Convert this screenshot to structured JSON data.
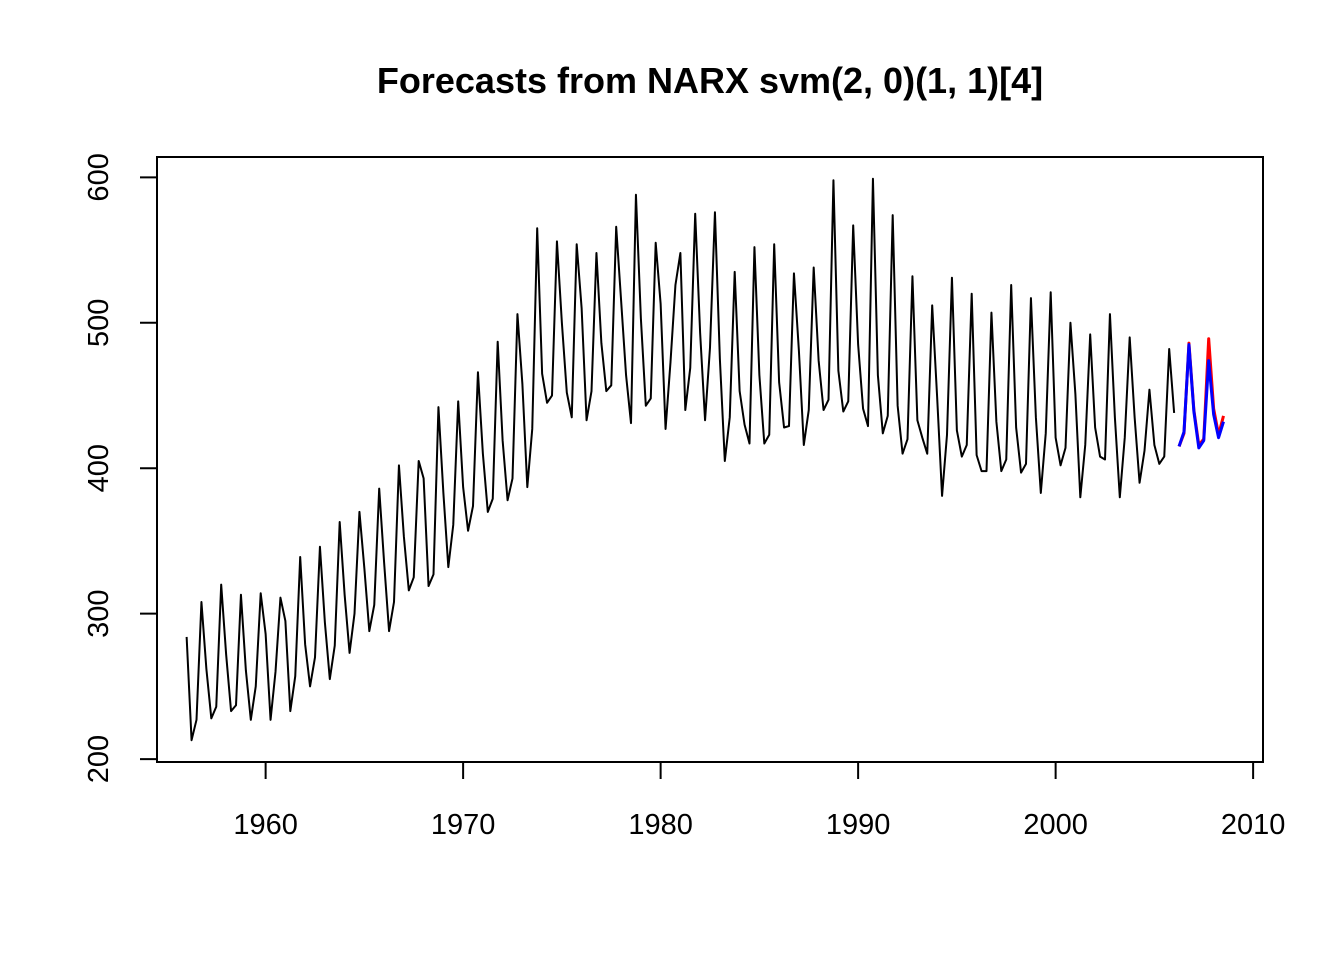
{
  "chart_data": {
    "type": "line",
    "title": "Forecasts from NARX svm(2, 0)(1, 1)[4]",
    "xlabel": "",
    "ylabel": "",
    "xlim": [
      1954.5,
      2010.5
    ],
    "ylim": [
      198,
      614
    ],
    "x_ticks": [
      1960,
      1970,
      1980,
      1990,
      2000,
      2010
    ],
    "y_ticks": [
      200,
      300,
      400,
      500,
      600
    ],
    "grid": false,
    "legend": "none",
    "series": [
      {
        "color": "#000000",
        "start": 1956.0,
        "frequency": 4,
        "values": [
          284,
          213,
          227,
          308,
          262,
          228,
          236,
          320,
          272,
          233,
          237,
          313,
          261,
          227,
          250,
          314,
          286,
          227,
          260,
          311,
          295,
          233,
          257,
          339,
          279,
          250,
          270,
          346,
          294,
          255,
          278,
          363,
          313,
          273,
          300,
          370,
          331,
          288,
          306,
          386,
          335,
          288,
          308,
          402,
          353,
          316,
          325,
          405,
          393,
          319,
          327,
          442,
          383,
          332,
          361,
          446,
          387,
          357,
          374,
          466,
          410,
          370,
          379,
          487,
          419,
          378,
          393,
          506,
          458,
          387,
          427,
          565,
          465,
          445,
          450,
          556,
          500,
          452,
          435,
          554,
          510,
          433,
          453,
          548,
          486,
          453,
          457,
          566,
          515,
          464,
          431,
          588,
          503,
          443,
          448,
          555,
          513,
          427,
          473,
          526,
          548,
          440,
          469,
          575,
          493,
          433,
          483,
          576,
          475,
          405,
          435,
          535,
          453,
          430,
          417,
          552,
          464,
          417,
          423,
          554,
          459,
          428,
          429,
          534,
          481,
          416,
          440,
          538,
          474,
          440,
          447,
          598,
          467,
          439,
          446,
          567,
          485,
          441,
          429,
          599,
          464,
          424,
          436,
          574,
          443,
          410,
          420,
          532,
          433,
          421,
          410,
          512,
          449,
          381,
          423,
          531,
          426,
          408,
          416,
          520,
          409,
          398,
          398,
          507,
          432,
          398,
          406,
          526,
          428,
          397,
          403,
          517,
          435,
          383,
          424,
          521,
          421,
          402,
          414,
          500,
          451,
          380,
          416,
          492,
          428,
          408,
          406,
          506,
          435,
          380,
          421,
          490,
          435,
          390,
          412,
          454,
          416,
          403,
          408,
          482,
          438
        ]
      },
      {
        "color": "#ff0000",
        "start": 2006.25,
        "frequency": 4,
        "values": [
          415,
          424,
          486,
          440,
          416,
          420,
          489,
          441,
          423,
          436
        ]
      },
      {
        "color": "#0000ff",
        "start": 2006.25,
        "frequency": 4,
        "values": [
          415,
          425,
          485,
          439,
          414,
          419,
          474,
          437,
          421,
          432
        ]
      }
    ]
  }
}
